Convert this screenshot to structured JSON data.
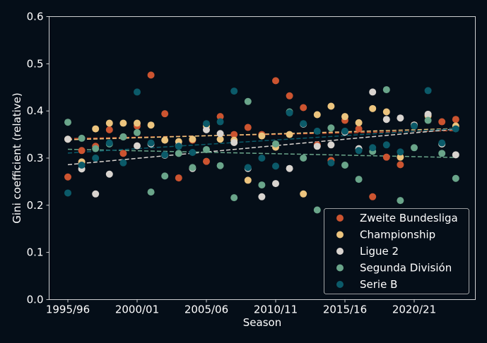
{
  "chart_data": {
    "type": "scatter",
    "title": "",
    "xlabel": "Season",
    "ylabel": "Gini coefficient (relative)",
    "ylim": [
      0.0,
      0.6
    ],
    "yticks": [
      "0.0",
      "0.1",
      "0.2",
      "0.3",
      "0.4",
      "0.5",
      "0.6"
    ],
    "seasons": [
      "1995/96",
      "1996/97",
      "1997/98",
      "1998/99",
      "1999/00",
      "2000/01",
      "2001/02",
      "2002/03",
      "2003/04",
      "2004/05",
      "2005/06",
      "2006/07",
      "2007/08",
      "2008/09",
      "2009/10",
      "2010/11",
      "2011/12",
      "2012/13",
      "2013/14",
      "2014/15",
      "2015/16",
      "2016/17",
      "2017/18",
      "2018/19",
      "2019/20",
      "2020/21",
      "2021/22",
      "2022/23",
      "2023/24"
    ],
    "xticks": [
      "1995/96",
      "2000/01",
      "2005/06",
      "2010/11",
      "2015/16",
      "2020/21"
    ],
    "legend_position": "bottom-right",
    "trendlines": "linear, dashed",
    "series": [
      {
        "name": "Zweite Bundesliga",
        "color": "#cc5430",
        "values": [
          0.26,
          0.316,
          0.325,
          0.36,
          0.31,
          0.368,
          0.476,
          0.394,
          0.258,
          0.338,
          0.293,
          0.388,
          0.35,
          0.365,
          0.35,
          0.464,
          0.432,
          0.407,
          0.328,
          0.295,
          0.38,
          0.362,
          0.218,
          0.302,
          0.286,
          0.37,
          0.39,
          0.377,
          0.382
        ]
      },
      {
        "name": "Championship",
        "color": "#ecc47e",
        "values": [
          0.34,
          0.292,
          0.362,
          0.374,
          0.374,
          0.374,
          0.37,
          0.338,
          0.335,
          0.34,
          0.368,
          0.34,
          0.338,
          0.253,
          0.347,
          0.323,
          0.35,
          0.224,
          0.392,
          0.41,
          0.388,
          0.375,
          0.405,
          0.398,
          0.302,
          0.37,
          0.39,
          0.33,
          0.368
        ]
      },
      {
        "name": "Ligue 2",
        "color": "#d9d4cf",
        "values": [
          0.34,
          0.277,
          0.224,
          0.266,
          0.345,
          0.326,
          0.33,
          0.306,
          0.326,
          0.278,
          0.36,
          0.352,
          0.333,
          0.278,
          0.218,
          0.246,
          0.278,
          0.372,
          0.325,
          0.328,
          0.355,
          0.32,
          0.44,
          0.382,
          0.385,
          0.37,
          0.393,
          0.33,
          0.307
        ]
      },
      {
        "name": "Segunda División",
        "color": "#6aa58a",
        "values": [
          0.376,
          0.342,
          0.32,
          0.33,
          0.345,
          0.354,
          0.228,
          0.262,
          0.31,
          0.28,
          0.318,
          0.284,
          0.216,
          0.42,
          0.243,
          0.33,
          0.398,
          0.3,
          0.19,
          0.364,
          0.285,
          0.255,
          0.314,
          0.445,
          0.21,
          0.322,
          0.38,
          0.31,
          0.257
        ]
      },
      {
        "name": "Serie B",
        "color": "#0b5a69",
        "values": [
          0.226,
          0.285,
          0.3,
          0.332,
          0.29,
          0.44,
          0.332,
          0.307,
          0.325,
          0.312,
          0.373,
          0.377,
          0.442,
          0.28,
          0.3,
          0.283,
          0.396,
          0.373,
          0.357,
          0.29,
          0.357,
          0.316,
          0.322,
          0.328,
          0.313,
          0.368,
          0.443,
          0.332,
          0.362
        ]
      }
    ]
  }
}
